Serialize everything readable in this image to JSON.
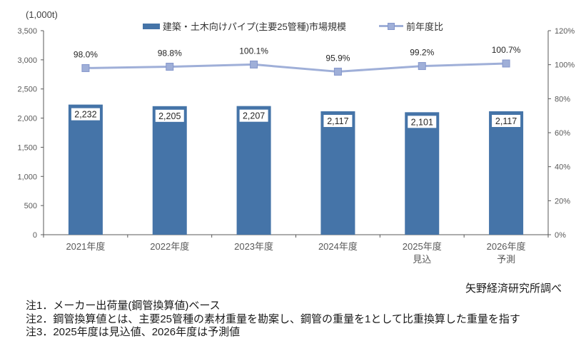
{
  "unit_label": "(1,000t)",
  "legend": {
    "bars": "建築・土木向けパイプ(主要25管種)市場規模",
    "line": "前年度比"
  },
  "source": "矢野経済研究所調べ",
  "notes": [
    "注1．メーカー出荷量(鋼管換算値)ベース",
    "注2．鋼管換算値とは、主要25管種の素材重量を勘案し、鋼管の重量を1として比重換算した重量を指す",
    "注3．2025年度は見込値、2026年度は予測値"
  ],
  "colors": {
    "bar": "#4574A8",
    "line": "#9FAFD8",
    "marker_border": "#8496CB",
    "axis": "#595959",
    "axis_text": "#595959",
    "label_text": "#262626",
    "bar_label_bg": "#FFFFFF"
  },
  "chart_data": {
    "type": "bar",
    "subtype": "combo bar+line with dual value axes",
    "categories": [
      "2021年度",
      "2022年度",
      "2023年度",
      "2024年度",
      "2025年度",
      "2026年度"
    ],
    "category_sublabels": [
      "",
      "",
      "",
      "",
      "見込",
      "予測"
    ],
    "series": [
      {
        "name": "建築・土木向けパイプ(主要25管種)市場規模",
        "type": "bar",
        "axis": "left",
        "values": [
          2232,
          2205,
          2207,
          2117,
          2101,
          2117
        ],
        "labels": [
          "2,232",
          "2,205",
          "2,207",
          "2,117",
          "2,101",
          "2,117"
        ]
      },
      {
        "name": "前年度比",
        "type": "line",
        "axis": "right",
        "values": [
          98.0,
          98.8,
          100.1,
          95.9,
          99.2,
          100.7
        ],
        "labels": [
          "98.0%",
          "98.8%",
          "100.1%",
          "95.9%",
          "99.2%",
          "100.7%"
        ]
      }
    ],
    "left_axis": {
      "title": "(1,000t)",
      "min": 0,
      "max": 3500,
      "step": 500,
      "tick_labels": [
        "0",
        "500",
        "1,000",
        "1,500",
        "2,000",
        "2,500",
        "3,000",
        "3,500"
      ]
    },
    "right_axis": {
      "min": 0,
      "max": 120,
      "step": 20,
      "tick_labels": [
        "0%",
        "20%",
        "40%",
        "60%",
        "80%",
        "100%",
        "120%"
      ]
    },
    "grid": false,
    "legend_position": "top"
  }
}
